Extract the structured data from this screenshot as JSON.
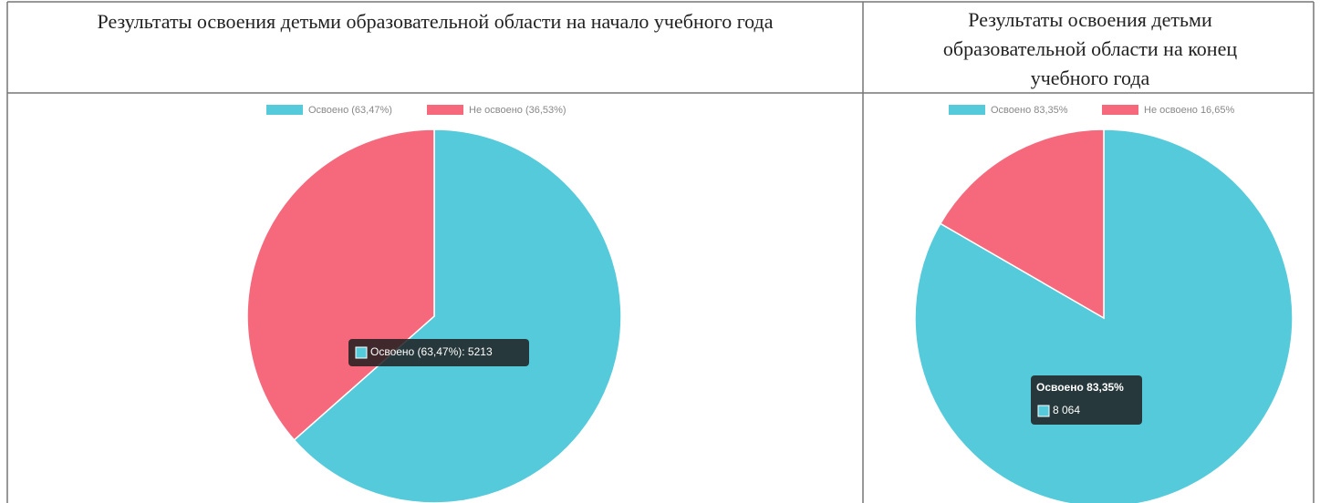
{
  "table": {
    "headers": [
      "Результаты освоения детьми образовательной области на начало учебного года",
      [
        "Результаты освоения детьми",
        "образовательной области на конец",
        "учебного года"
      ]
    ]
  },
  "chart_data": [
    {
      "type": "pie",
      "categories": [
        "Освоено (63,47%)",
        "Не освоено (36,53%)"
      ],
      "values": [
        63.47,
        36.53
      ],
      "colors": [
        "#55cadb",
        "#f6697d"
      ],
      "legend": "top",
      "annotations": [
        "Освоено (63,47%): 5213"
      ]
    },
    {
      "type": "pie",
      "categories": [
        "Освоено 83,35%",
        "Не освоено 16,65%"
      ],
      "values": [
        83.35,
        16.65
      ],
      "colors": [
        "#55cadb",
        "#f6697d"
      ],
      "legend": "top",
      "annotations": [
        "Освоено 83,35%",
        "8 064"
      ]
    }
  ]
}
